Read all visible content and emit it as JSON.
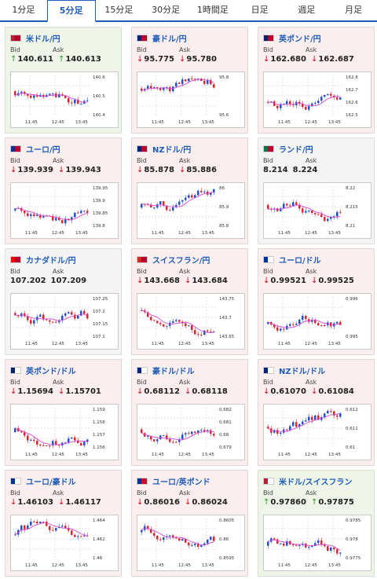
{
  "tabs": [
    {
      "label": "1分足",
      "active": false
    },
    {
      "label": "5分足",
      "active": true
    },
    {
      "label": "15分足",
      "active": false
    },
    {
      "label": "30分足",
      "active": false
    },
    {
      "label": "1時間足",
      "active": false
    },
    {
      "label": "日足",
      "active": false
    },
    {
      "label": "週足",
      "active": false
    },
    {
      "label": "月足",
      "active": false
    }
  ],
  "bid_label": "Bid",
  "ask_label": "Ask",
  "colors": {
    "up_candle": "#2450c8",
    "down_candle": "#d8262e",
    "ma_line": "#d44bd6",
    "up_arrow": "#2a9d2a",
    "down_arrow": "#d0021b"
  },
  "cards": [
    {
      "pair": "米ドル/円",
      "flag": "us-jp",
      "trend": "up",
      "bid": "140.611",
      "ask": "140.613",
      "y_ticks": [
        "140.6",
        "140.5",
        "140.4"
      ],
      "x_ticks": [
        "11:45",
        "12:45",
        "13:45"
      ]
    },
    {
      "pair": "豪ドル/円",
      "flag": "au-jp",
      "trend": "down",
      "bid": "95.775",
      "ask": "95.780",
      "y_ticks": [
        "95.8",
        "95.6"
      ],
      "x_ticks": [
        "11:45",
        "12:45",
        "13:45"
      ]
    },
    {
      "pair": "英ポンド/円",
      "flag": "gb-jp",
      "trend": "down",
      "bid": "162.680",
      "ask": "162.687",
      "y_ticks": [
        "162.8",
        "162.7",
        "162.6",
        "162.5"
      ],
      "x_ticks": [
        "11:45",
        "12:45",
        "13:45"
      ]
    },
    {
      "pair": "ユーロ/円",
      "flag": "eu-jp",
      "trend": "down",
      "bid": "139.939",
      "ask": "139.943",
      "y_ticks": [
        "139.95",
        "139.9",
        "139.85",
        "139.8"
      ],
      "x_ticks": [
        "11:45",
        "12:45",
        "13:45"
      ]
    },
    {
      "pair": "NZドル/円",
      "flag": "nz-jp",
      "trend": "down",
      "bid": "85.878",
      "ask": "85.886",
      "y_ticks": [
        "86",
        "85.9",
        "85.8"
      ],
      "x_ticks": [
        "11:45",
        "12:45",
        "13:45"
      ]
    },
    {
      "pair": "ランド/円",
      "flag": "za-jp",
      "trend": "neutral",
      "bid": "8.214",
      "ask": "8.224",
      "y_ticks": [
        "8.22",
        "8.215",
        "8.21"
      ],
      "x_ticks": [
        "11:45",
        "12:45",
        "13:45"
      ]
    },
    {
      "pair": "カナダドル/円",
      "flag": "ca-jp",
      "trend": "neutral",
      "bid": "107.202",
      "ask": "107.209",
      "y_ticks": [
        "107.25",
        "107.2",
        "107.15",
        "107.1"
      ],
      "x_ticks": [
        "11:45",
        "12:45",
        "13:45"
      ]
    },
    {
      "pair": "スイスフラン/円",
      "flag": "ch-jp",
      "trend": "down",
      "bid": "143.668",
      "ask": "143.684",
      "y_ticks": [
        "143.75",
        "143.7",
        "143.65"
      ],
      "x_ticks": [
        "11:45",
        "12:45",
        "13:45"
      ]
    },
    {
      "pair": "ユーロ/ドル",
      "flag": "eu-us",
      "trend": "down",
      "bid": "0.99521",
      "ask": "0.99525",
      "y_ticks": [
        "0.996",
        "0.995"
      ],
      "x_ticks": [
        "11:45",
        "12:45",
        "13:45"
      ]
    },
    {
      "pair": "英ポンド/ドル",
      "flag": "gb-us",
      "trend": "down",
      "bid": "1.15694",
      "ask": "1.15701",
      "y_ticks": [
        "1.159",
        "1.158",
        "1.157",
        "1.156"
      ],
      "x_ticks": [
        "11:45",
        "12:45",
        "13:45"
      ]
    },
    {
      "pair": "豪ドル/ドル",
      "flag": "au-us",
      "trend": "down",
      "bid": "0.68112",
      "ask": "0.68118",
      "y_ticks": [
        "0.682",
        "0.681",
        "0.68",
        "0.679"
      ],
      "x_ticks": [
        "11:45",
        "12:45",
        "13:45"
      ]
    },
    {
      "pair": "NZドル/ドル",
      "flag": "nz-us",
      "trend": "down",
      "bid": "0.61070",
      "ask": "0.61084",
      "y_ticks": [
        "0.612",
        "0.611",
        "0.61"
      ],
      "x_ticks": [
        "11:45",
        "12:45",
        "13:45"
      ]
    },
    {
      "pair": "ユーロ/豪ドル",
      "flag": "eu-au",
      "trend": "down",
      "bid": "1.46103",
      "ask": "1.46117",
      "y_ticks": [
        "1.464",
        "1.462",
        "1.46"
      ],
      "x_ticks": [
        "11:45",
        "12:45",
        "13:45"
      ]
    },
    {
      "pair": "ユーロ/英ポンド",
      "flag": "eu-gb",
      "trend": "down",
      "bid": "0.86016",
      "ask": "0.86024",
      "y_ticks": [
        "0.8605",
        "0.86",
        "0.8595"
      ],
      "x_ticks": [
        "11:45",
        "12:45",
        "13:45"
      ]
    },
    {
      "pair": "米ドル/スイスフラン",
      "flag": "us-ch",
      "trend": "up",
      "bid": "0.97860",
      "ask": "0.97875",
      "y_ticks": [
        "0.9785",
        "0.978",
        "0.9775"
      ],
      "x_ticks": [
        "11:45",
        "12:45",
        "13:45"
      ]
    }
  ]
}
